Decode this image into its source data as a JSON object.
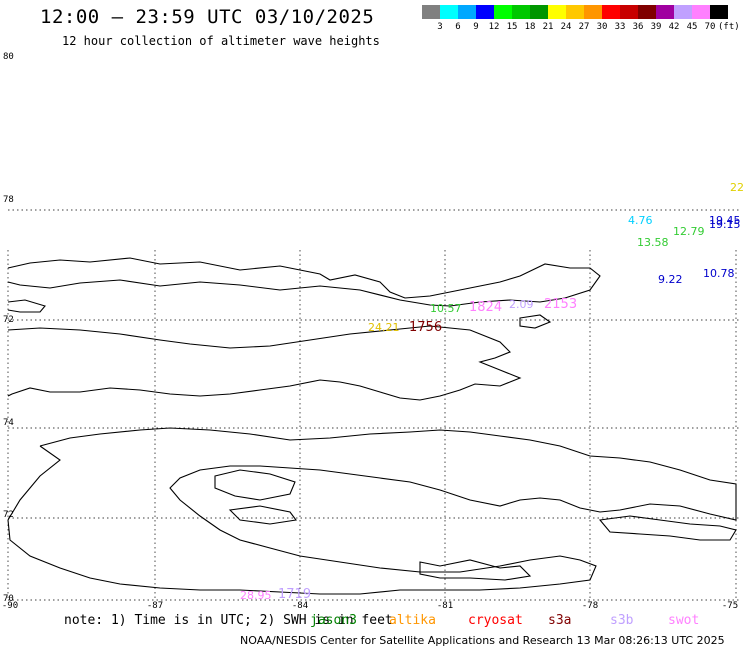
{
  "title": "12:00 – 23:59 UTC 03/10/2025",
  "subtitle": "12 hour collection of altimeter wave heights",
  "legend": {
    "colors": [
      "#808080",
      "#00ffff",
      "#00a8ff",
      "#0000ff",
      "#00ff00",
      "#00c800",
      "#009600",
      "#ffff00",
      "#ffc800",
      "#ff9600",
      "#ff0000",
      "#c80000",
      "#800000",
      "#a000a0",
      "#c0a0ff",
      "#ff80ff",
      "#000000"
    ],
    "labels": [
      "3",
      "6",
      "9",
      "12",
      "15",
      "18",
      "21",
      "24",
      "27",
      "30",
      "33",
      "36",
      "39",
      "42",
      "45",
      "70"
    ],
    "unit": "(ft)"
  },
  "lat_labels": [
    "80",
    "78",
    "72",
    "74",
    "72",
    "70"
  ],
  "lon_labels": [
    "-90",
    "-87",
    "-84",
    "-81",
    "-78",
    "-75"
  ],
  "wave_labels": [
    {
      "text": "22",
      "color": "#e0d000"
    },
    {
      "text": "19.45",
      "color": "#0000cc"
    },
    {
      "text": "19.15",
      "color": "#0000cc"
    },
    {
      "text": "4.76",
      "color": "#00d0ff"
    },
    {
      "text": "12.79",
      "color": "#33cc33"
    },
    {
      "text": "13.58",
      "color": "#33cc33"
    },
    {
      "text": "9.22",
      "color": "#0000cc"
    },
    {
      "text": "10.78",
      "color": "#0000cc"
    },
    {
      "text": "10.57",
      "color": "#33cc33"
    },
    {
      "text": "1824",
      "color": "#ff80ff"
    },
    {
      "text": "2.09",
      "color": "#c0a0ff"
    },
    {
      "text": "2153",
      "color": "#ff80ff"
    },
    {
      "text": "24.21",
      "color": "#e0c000"
    },
    {
      "text": "1756",
      "color": "#800000"
    },
    {
      "text": "28.95",
      "color": "#ff80ff"
    },
    {
      "text": "1719",
      "color": "#c0a0ff"
    }
  ],
  "note": "note: 1) Time is in UTC; 2) SWH is in feet",
  "satellites": [
    {
      "name": "jason3",
      "color": "#008000"
    },
    {
      "name": "altika",
      "color": "#ff9600"
    },
    {
      "name": "cryosat",
      "color": "#ff0000"
    },
    {
      "name": "s3a",
      "color": "#800000"
    },
    {
      "name": "s3b",
      "color": "#c0a0ff"
    },
    {
      "name": "swot",
      "color": "#ff80ff"
    }
  ],
  "footer": "NOAA/NESDIS Center for Satellite Applications and Research   13 Mar 08:26:13 UTC 2025"
}
